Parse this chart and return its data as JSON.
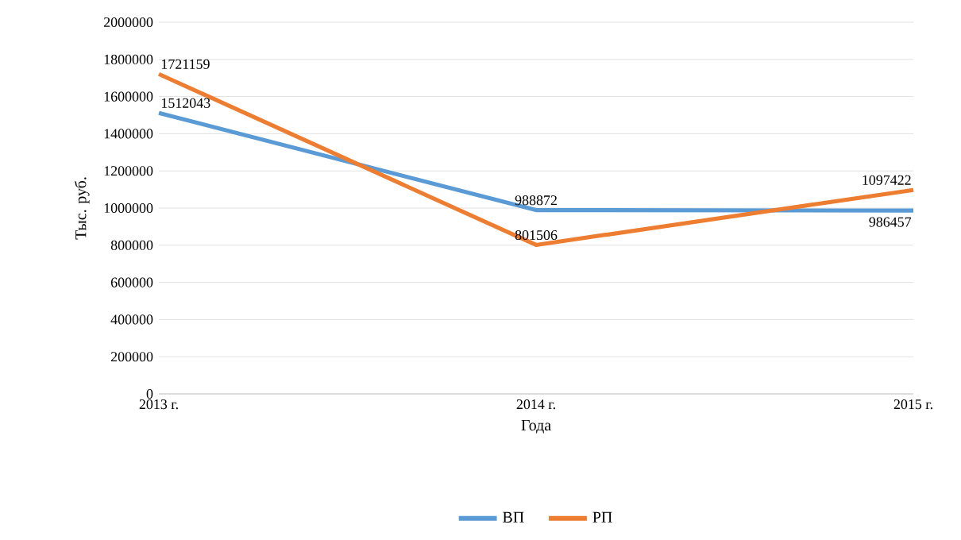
{
  "chart_data": {
    "type": "line",
    "xlabel": "Года",
    "ylabel": "Тыс. руб.",
    "categories": [
      "2013 г.",
      "2014 г.",
      "2015 г."
    ],
    "series": [
      {
        "name": "ВП",
        "color": "#5b9bd5",
        "values": [
          1512043,
          988872,
          986457
        ]
      },
      {
        "name": "РП",
        "color": "#ed7d31",
        "values": [
          1721159,
          801506,
          1097422
        ]
      }
    ],
    "ylim": [
      0,
      2000000
    ],
    "yticks": [
      0,
      200000,
      400000,
      600000,
      800000,
      1000000,
      1200000,
      1400000,
      1600000,
      1800000,
      2000000
    ],
    "grid": "y",
    "legend": "bottom",
    "data_labels": true,
    "marker": "none",
    "line_style": "solid"
  }
}
